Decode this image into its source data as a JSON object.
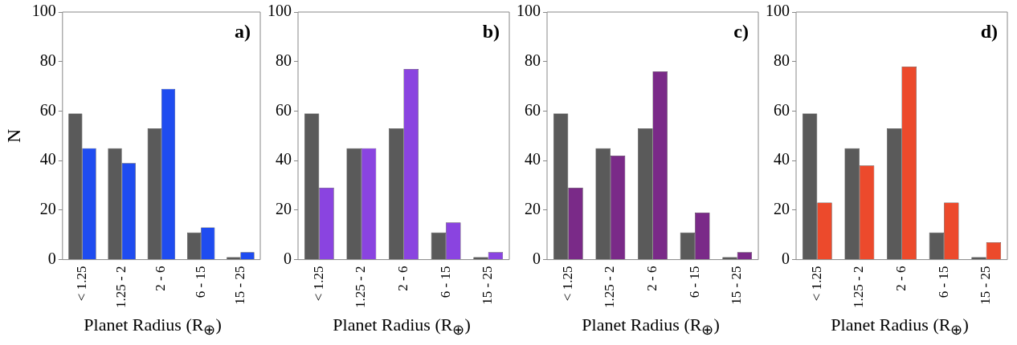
{
  "chart_data": [
    {
      "type": "bar",
      "categories": [
        "< 1.25",
        "1.25 - 2",
        "2 - 6",
        "6 - 15",
        "15 - 25"
      ],
      "series": [
        {
          "color": "#5a5a5a",
          "values": [
            59,
            45,
            53,
            11,
            1
          ]
        },
        {
          "color": "#1f4cf0",
          "values": [
            45,
            39,
            69,
            13,
            3
          ]
        }
      ],
      "ylim": [
        0,
        100
      ],
      "yticks": [
        0,
        20,
        40,
        60,
        80,
        100
      ],
      "xlabel": "Planet Radius (R$_{⊕}$)",
      "ylabel": "N",
      "annotations": [
        "a)"
      ],
      "grid": false
    },
    {
      "type": "bar",
      "categories": [
        "< 1.25",
        "1.25 - 2",
        "2 - 6",
        "6 - 15",
        "15 - 25"
      ],
      "series": [
        {
          "color": "#5a5a5a",
          "values": [
            59,
            45,
            53,
            11,
            1
          ]
        },
        {
          "color": "#8a44e0",
          "values": [
            29,
            45,
            77,
            15,
            3
          ]
        }
      ],
      "ylim": [
        0,
        100
      ],
      "yticks": [
        0,
        20,
        40,
        60,
        80,
        100
      ],
      "xlabel": "Planet Radius (R$_{⊕}$)",
      "annotations": [
        "b)"
      ],
      "grid": false
    },
    {
      "type": "bar",
      "categories": [
        "< 1.25",
        "1.25 - 2",
        "2 - 6",
        "6 - 15",
        "15 - 25"
      ],
      "series": [
        {
          "color": "#5a5a5a",
          "values": [
            59,
            45,
            53,
            11,
            1
          ]
        },
        {
          "color": "#7a2a88",
          "values": [
            29,
            42,
            76,
            19,
            3
          ]
        }
      ],
      "ylim": [
        0,
        100
      ],
      "yticks": [
        0,
        20,
        40,
        60,
        80,
        100
      ],
      "xlabel": "Planet Radius (R$_{⊕}$)",
      "annotations": [
        "c)"
      ],
      "grid": false
    },
    {
      "type": "bar",
      "categories": [
        "< 1.25",
        "1.25 - 2",
        "2 - 6",
        "6 - 15",
        "15 - 25"
      ],
      "series": [
        {
          "color": "#5a5a5a",
          "values": [
            59,
            45,
            53,
            11,
            1
          ]
        },
        {
          "color": "#ec4a2c",
          "values": [
            23,
            38,
            78,
            23,
            7
          ]
        }
      ],
      "ylim": [
        0,
        100
      ],
      "yticks": [
        0,
        20,
        40,
        60,
        80,
        100
      ],
      "xlabel": "Planet Radius (R$_{⊕}$)",
      "annotations": [
        "d)"
      ],
      "grid": false
    }
  ]
}
